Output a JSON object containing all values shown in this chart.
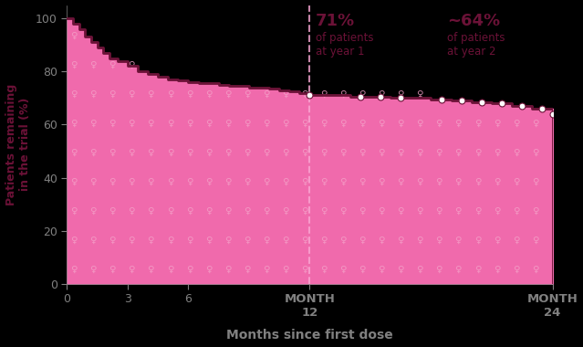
{
  "bg_color": "#000000",
  "plot_bg_color": "#000000",
  "fill_color": "#F06AAC",
  "line_color": "#6B1237",
  "dashed_line_color": "#F9A8D4",
  "ylabel": "Patients remaining\nin the trial (%)",
  "xlabel": "Months since first dose",
  "ylabel_color": "#6B1237",
  "xlabel_color": "#808080",
  "tick_color": "#808080",
  "ylim": [
    0,
    105
  ],
  "xlim": [
    0,
    24
  ],
  "yticks": [
    0,
    20,
    40,
    60,
    80,
    100
  ],
  "xticks_regular": [
    0,
    3,
    6
  ],
  "xticks_special": [
    12,
    24
  ],
  "xtick_labels_special": [
    "MONTH\n12",
    "MONTH\n24"
  ],
  "km_x": [
    0,
    0.3,
    0.6,
    0.9,
    1.2,
    1.5,
    1.8,
    2.1,
    2.5,
    3.0,
    3.5,
    4.0,
    4.5,
    5.0,
    5.5,
    6.0,
    6.5,
    7.0,
    7.5,
    8.0,
    8.5,
    9.0,
    9.5,
    10.0,
    10.5,
    11.0,
    11.5,
    12.0,
    13.0,
    14.0,
    15.0,
    16.0,
    17.0,
    18.0,
    19.0,
    20.0,
    21.0,
    22.0,
    23.0,
    24.0
  ],
  "km_y": [
    100,
    98,
    96,
    93,
    91,
    89,
    87,
    85,
    84,
    82,
    80,
    79,
    78,
    77,
    76.5,
    76,
    75.5,
    75.5,
    75,
    74.5,
    74.5,
    74,
    74,
    73.5,
    73,
    72.5,
    72,
    71,
    71,
    70.5,
    70.5,
    70,
    70,
    69.5,
    69,
    68.5,
    68,
    67,
    66,
    64
  ],
  "censor_x": [
    12.0,
    14.5,
    15.5,
    16.5,
    18.5,
    19.5,
    20.5,
    21.5,
    22.5,
    23.5,
    24.0
  ],
  "annotation_year1_pct": "71%",
  "annotation_year1_text": "of patients\nat year 1",
  "annotation_year1_color": "#6B1237",
  "annotation_year2_pct": "~64%",
  "annotation_year2_text": "of patients\nat year 2",
  "annotation_year2_color": "#6B1237",
  "special_tick_color": "#A01550",
  "icon_color": "#F4A0C8",
  "icon_char": "♀",
  "spine_color": "#555555"
}
